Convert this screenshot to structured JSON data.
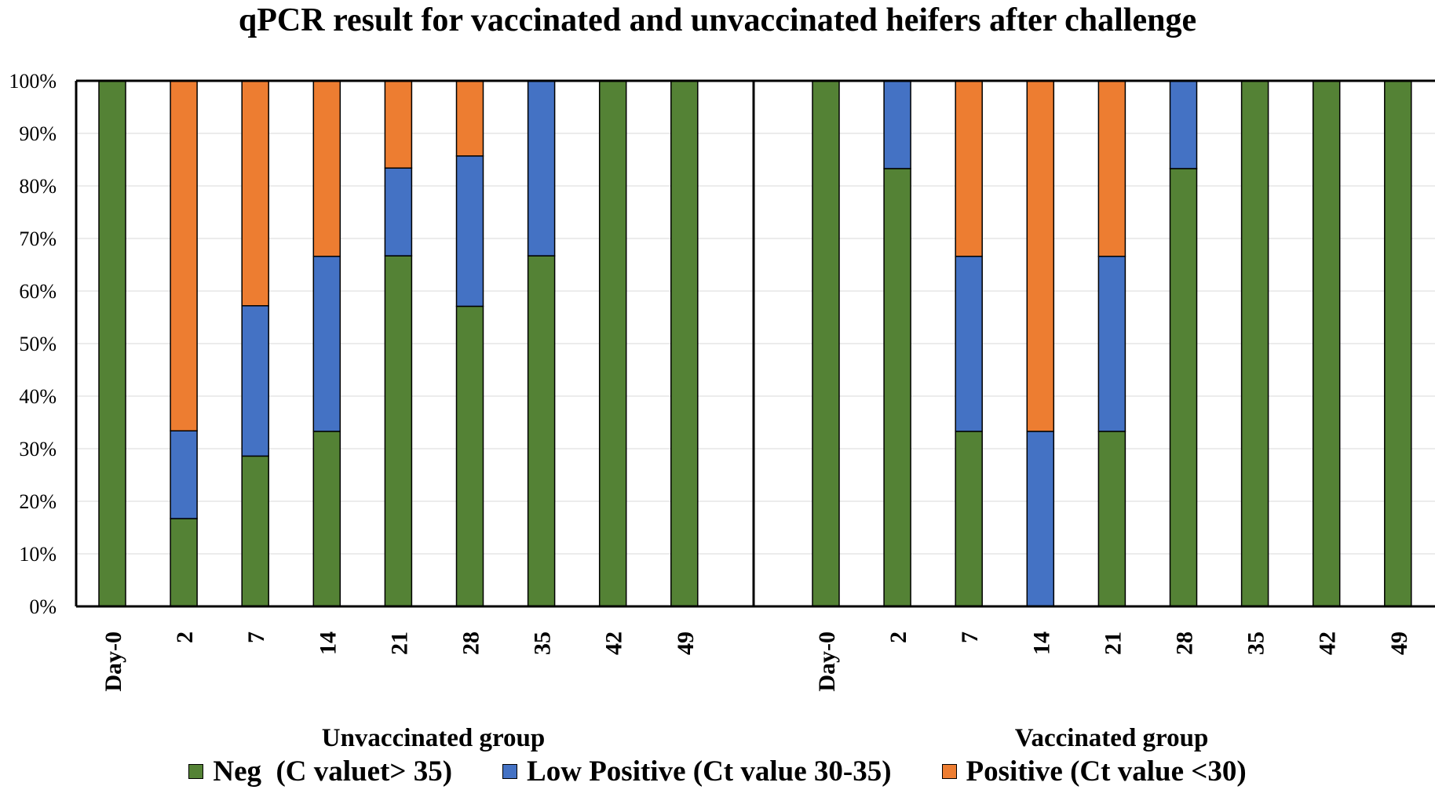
{
  "chart_data": {
    "type": "bar",
    "stacked": true,
    "percent": true,
    "title": "qPCR result for vaccinated and unvaccinated heifers after challenge",
    "ylim": [
      0,
      100
    ],
    "yticks": [
      "0%",
      "10%",
      "20%",
      "30%",
      "40%",
      "50%",
      "60%",
      "70%",
      "80%",
      "90%",
      "100%"
    ],
    "legend_position": "bottom",
    "groups": [
      {
        "name": "Unvaccinated group",
        "categories": [
          "Day-0",
          "2",
          "7",
          "14",
          "21",
          "28",
          "35",
          "42",
          "49"
        ],
        "series": [
          {
            "name": "Neg  (C valuet> 35)",
            "color": "#548235",
            "values": [
              100,
              16.7,
              28.6,
              33.3,
              66.7,
              57.1,
              66.7,
              100,
              100
            ]
          },
          {
            "name": "Low Positive (Ct value 30-35)",
            "color": "#4472C4",
            "values": [
              0,
              16.7,
              28.6,
              33.3,
              16.7,
              28.6,
              33.3,
              0,
              0
            ]
          },
          {
            "name": "Positive (Ct value <30)",
            "color": "#ED7D31",
            "values": [
              0,
              66.7,
              42.9,
              33.3,
              16.7,
              14.3,
              0,
              0,
              0
            ]
          }
        ]
      },
      {
        "name": "Vaccinated group",
        "categories": [
          "Day-0",
          "2",
          "7",
          "14",
          "21",
          "28",
          "35",
          "42",
          "49"
        ],
        "series": [
          {
            "name": "Neg  (C valuet> 35)",
            "color": "#548235",
            "values": [
              100,
              83.3,
              33.3,
              0,
              33.3,
              83.3,
              100,
              100,
              100
            ]
          },
          {
            "name": "Low Positive (Ct value 30-35)",
            "color": "#4472C4",
            "values": [
              0,
              16.7,
              33.3,
              33.3,
              33.3,
              16.7,
              0,
              0,
              0
            ]
          },
          {
            "name": "Positive (Ct value <30)",
            "color": "#ED7D31",
            "values": [
              0,
              0,
              33.4,
              66.7,
              33.4,
              0,
              0,
              0,
              0
            ]
          }
        ]
      }
    ]
  }
}
